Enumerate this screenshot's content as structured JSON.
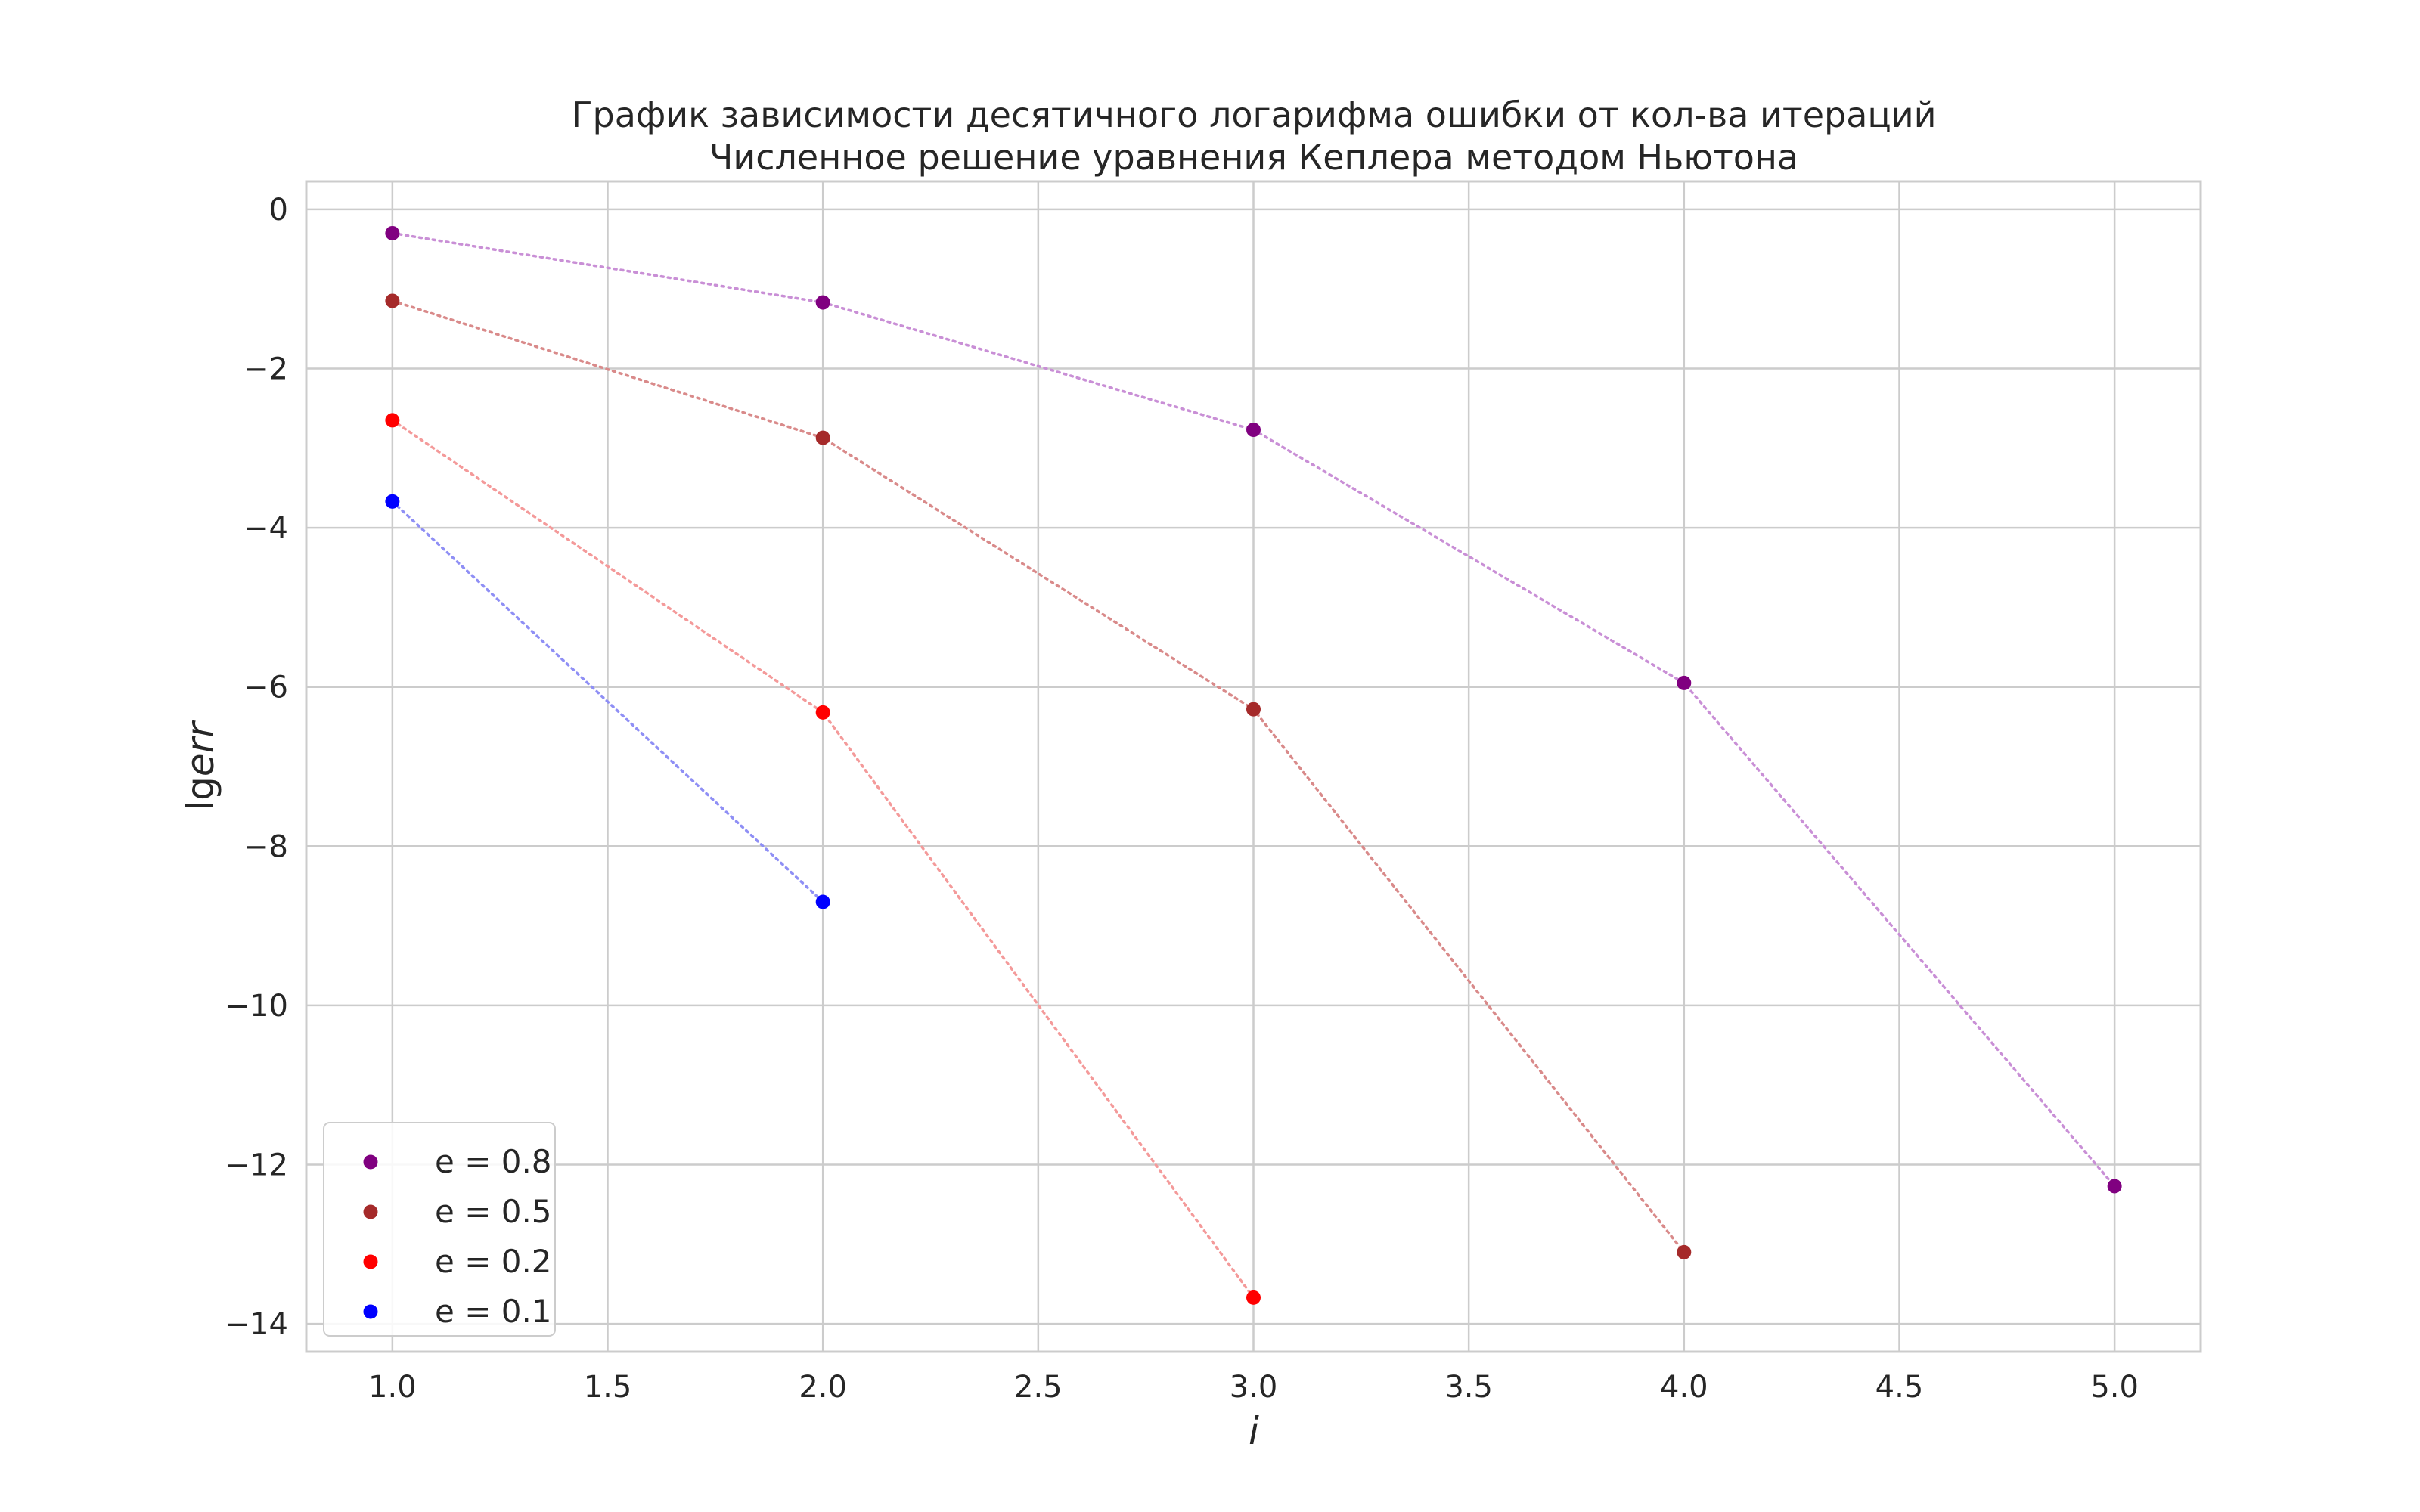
{
  "chart_data": {
    "type": "scatter",
    "title": "График зависимости десятичного логарифма ошибки от кол-ва итераций",
    "subtitle": "Численное решение уравнения Кеплера методом Ньютона",
    "xlabel": "i",
    "ylabel_prefix": "lg",
    "ylabel_var": "err",
    "xlim": [
      0.8,
      5.2
    ],
    "ylim": [
      -14.35,
      0.35
    ],
    "xticks": [
      1.0,
      1.5,
      2.0,
      2.5,
      3.0,
      3.5,
      4.0,
      4.5,
      5.0
    ],
    "xtick_labels": [
      "1.0",
      "1.5",
      "2.0",
      "2.5",
      "3.0",
      "3.5",
      "4.0",
      "4.5",
      "5.0"
    ],
    "yticks": [
      0,
      -2,
      -4,
      -6,
      -8,
      -10,
      -12,
      -14
    ],
    "ytick_labels": [
      "0",
      "−2",
      "−4",
      "−6",
      "−8",
      "−10",
      "−12",
      "−14"
    ],
    "grid": true,
    "legend_position": "bottom-left",
    "connector_style": "dotted",
    "series": [
      {
        "name": "e = 0.8",
        "color": "#800080",
        "line_color": "#c98fd6",
        "x": [
          1,
          2,
          3,
          4,
          5
        ],
        "y": [
          -0.3,
          -1.17,
          -2.77,
          -5.95,
          -12.27
        ]
      },
      {
        "name": "e = 0.5",
        "color": "#a52a2a",
        "line_color": "#d98a8a",
        "x": [
          1,
          2,
          3,
          4
        ],
        "y": [
          -1.15,
          -2.87,
          -6.28,
          -13.1
        ]
      },
      {
        "name": "e = 0.2",
        "color": "#ff0000",
        "line_color": "#f49a9a",
        "x": [
          1,
          2,
          3
        ],
        "y": [
          -2.65,
          -6.32,
          -13.67
        ]
      },
      {
        "name": "e = 0.1",
        "color": "#0000ff",
        "line_color": "#8f8ff5",
        "x": [
          1,
          2
        ],
        "y": [
          -3.67,
          -8.7
        ]
      }
    ]
  }
}
